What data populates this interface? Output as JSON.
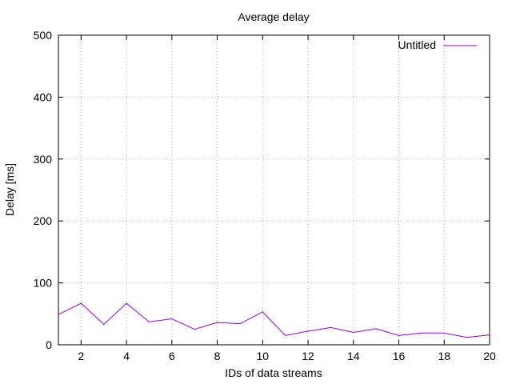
{
  "chart_data": {
    "type": "line",
    "title": "Average delay",
    "xlabel": "IDs of data streams",
    "ylabel": "Delay [ms]",
    "xlim": [
      1,
      20
    ],
    "ylim": [
      0,
      500
    ],
    "x_ticks": [
      2,
      4,
      6,
      8,
      10,
      12,
      14,
      16,
      18,
      20
    ],
    "y_ticks": [
      0,
      100,
      200,
      300,
      400,
      500
    ],
    "grid": true,
    "legend_position": "top-right",
    "series": [
      {
        "name": "Untitled",
        "color": "#9400d3",
        "x": [
          1,
          2,
          3,
          4,
          5,
          6,
          7,
          8,
          9,
          10,
          11,
          12,
          13,
          14,
          15,
          16,
          17,
          18,
          19,
          20
        ],
        "y": [
          49,
          67,
          33,
          67,
          37,
          42,
          25,
          36,
          34,
          53,
          15,
          22,
          28,
          20,
          26,
          15,
          19,
          19,
          12,
          16
        ]
      }
    ]
  }
}
